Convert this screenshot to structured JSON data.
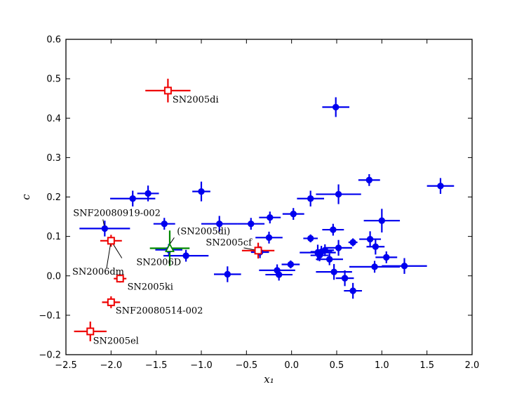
{
  "chart_data": {
    "type": "scatter",
    "xlabel": "x₁",
    "ylabel": "c",
    "xlim": [
      -2.5,
      2.0
    ],
    "ylim": [
      -0.2,
      0.6
    ],
    "xticks": [
      -2.5,
      -2.0,
      -1.5,
      -1.0,
      -0.5,
      0.0,
      0.5,
      1.0,
      1.5,
      2.0
    ],
    "xtick_labels": [
      "−2.5",
      "−2.0",
      "−1.5",
      "−1.0",
      "−0.5",
      "0.0",
      "0.5",
      "1.0",
      "1.5",
      "2.0"
    ],
    "yticks": [
      -0.2,
      -0.1,
      0.0,
      0.1,
      0.2,
      0.3,
      0.4,
      0.5,
      0.6
    ],
    "ytick_labels": [
      "−0.2",
      "−0.1",
      "0.0",
      "0.1",
      "0.2",
      "0.3",
      "0.4",
      "0.5",
      "0.6"
    ],
    "grid": false,
    "series": [
      {
        "color": "#0000ee",
        "marker": "filled-circle",
        "points": [
          {
            "x": 0.49,
            "y": 0.428,
            "xerr": 0.15,
            "yerr": 0.025
          },
          {
            "x": -1.59,
            "y": 0.209,
            "xerr": 0.12,
            "yerr": 0.02
          },
          {
            "x": -1.76,
            "y": 0.196,
            "xerr": 0.25,
            "yerr": 0.02
          },
          {
            "x": -1.0,
            "y": 0.214,
            "xerr": 0.1,
            "yerr": 0.025
          },
          {
            "x": -2.07,
            "y": 0.12,
            "xerr": 0.28,
            "yerr": 0.02
          },
          {
            "x": -1.41,
            "y": 0.132,
            "xerr": 0.12,
            "yerr": 0.015
          },
          {
            "x": -0.8,
            "y": 0.132,
            "xerr": 0.2,
            "yerr": 0.02
          },
          {
            "x": -0.45,
            "y": 0.132,
            "xerr": 0.15,
            "yerr": 0.015
          },
          {
            "x": -0.24,
            "y": 0.148,
            "xerr": 0.12,
            "yerr": 0.015
          },
          {
            "x": 0.02,
            "y": 0.157,
            "xerr": 0.12,
            "yerr": 0.015
          },
          {
            "x": 0.21,
            "y": 0.196,
            "xerr": 0.15,
            "yerr": 0.02
          },
          {
            "x": 0.52,
            "y": 0.207,
            "xerr": 0.25,
            "yerr": 0.025
          },
          {
            "x": 0.86,
            "y": 0.243,
            "xerr": 0.12,
            "yerr": 0.015
          },
          {
            "x": 1.65,
            "y": 0.228,
            "xerr": 0.15,
            "yerr": 0.02
          },
          {
            "x": 1.0,
            "y": 0.14,
            "xerr": 0.2,
            "yerr": 0.03
          },
          {
            "x": 0.46,
            "y": 0.117,
            "xerr": 0.12,
            "yerr": 0.015
          },
          {
            "x": 0.21,
            "y": 0.095,
            "xerr": 0.08,
            "yerr": 0.01
          },
          {
            "x": -0.25,
            "y": 0.097,
            "xerr": 0.15,
            "yerr": 0.015
          },
          {
            "x": 0.87,
            "y": 0.093,
            "xerr": 0.12,
            "yerr": 0.02
          },
          {
            "x": 0.68,
            "y": 0.085,
            "xerr": 0.05,
            "yerr": 0.01
          },
          {
            "x": 0.93,
            "y": 0.074,
            "xerr": 0.1,
            "yerr": 0.02
          },
          {
            "x": 0.52,
            "y": 0.071,
            "xerr": 0.15,
            "yerr": 0.02
          },
          {
            "x": 0.37,
            "y": 0.065,
            "xerr": 0.1,
            "yerr": 0.015
          },
          {
            "x": 0.33,
            "y": 0.061,
            "xerr": 0.12,
            "yerr": 0.015
          },
          {
            "x": 0.29,
            "y": 0.059,
            "xerr": 0.2,
            "yerr": 0.02
          },
          {
            "x": 0.31,
            "y": 0.052,
            "xerr": 0.1,
            "yerr": 0.015
          },
          {
            "x": 0.42,
            "y": 0.042,
            "xerr": 0.15,
            "yerr": 0.015
          },
          {
            "x": 1.05,
            "y": 0.047,
            "xerr": 0.12,
            "yerr": 0.015
          },
          {
            "x": -1.17,
            "y": 0.051,
            "xerr": 0.25,
            "yerr": 0.015
          },
          {
            "x": -0.35,
            "y": 0.06,
            "xerr": 0.1,
            "yerr": 0.015
          },
          {
            "x": -0.01,
            "y": 0.029,
            "xerr": 0.1,
            "yerr": 0.01
          },
          {
            "x": -0.16,
            "y": 0.014,
            "xerr": 0.2,
            "yerr": 0.015
          },
          {
            "x": -0.14,
            "y": 0.003,
            "xerr": 0.15,
            "yerr": 0.015
          },
          {
            "x": -0.71,
            "y": 0.004,
            "xerr": 0.15,
            "yerr": 0.02
          },
          {
            "x": 0.92,
            "y": 0.023,
            "xerr": 0.28,
            "yerr": 0.015
          },
          {
            "x": 1.25,
            "y": 0.025,
            "xerr": 0.25,
            "yerr": 0.02
          },
          {
            "x": 0.47,
            "y": 0.01,
            "xerr": 0.2,
            "yerr": 0.02
          },
          {
            "x": 0.59,
            "y": -0.006,
            "xerr": 0.1,
            "yerr": 0.02
          },
          {
            "x": 0.68,
            "y": -0.038,
            "xerr": 0.1,
            "yerr": 0.02
          },
          {
            "x": -1.36,
            "y": 0.066,
            "xerr": 0.15,
            "yerr": 0.015
          }
        ]
      },
      {
        "color": "#ee0000",
        "marker": "open-square",
        "points": [
          {
            "x": -1.37,
            "y": 0.47,
            "xerr": 0.25,
            "yerr": 0.03,
            "label": "SN2005di"
          },
          {
            "x": -2.0,
            "y": 0.089,
            "xerr": 0.12,
            "yerr": 0.015,
            "label": "SN2006D"
          },
          {
            "x": -0.37,
            "y": 0.064,
            "xerr": 0.18,
            "yerr": 0.02,
            "label": "SN2005cf"
          },
          {
            "x": -1.9,
            "y": -0.007,
            "xerr": 0.07,
            "yerr": 0.01,
            "label": "SN2005ki"
          },
          {
            "x": -2.0,
            "y": -0.067,
            "xerr": 0.1,
            "yerr": 0.015,
            "label": "SNF20080514-002"
          },
          {
            "x": -2.23,
            "y": -0.141,
            "xerr": 0.18,
            "yerr": 0.025,
            "label": "SN2005el"
          }
        ]
      },
      {
        "color": "#008800",
        "marker": "open-triangle",
        "points": [
          {
            "x": -1.35,
            "y": 0.07,
            "xerr": 0.22,
            "yerr": 0.045,
            "label": "(SN2005di)"
          }
        ]
      }
    ],
    "annotations": [
      {
        "text": "SN2005di",
        "x": -1.32,
        "y": 0.44
      },
      {
        "text": "SNF20080919-002",
        "x": -2.42,
        "y": 0.152
      },
      {
        "text": "(SN2005di)",
        "x": -1.27,
        "y": 0.106
      },
      {
        "text": "SN2005cf",
        "x": -0.95,
        "y": 0.077
      },
      {
        "text": "SN2006D",
        "x": -1.72,
        "y": 0.027
      },
      {
        "text": "SN2006dm",
        "x": -2.43,
        "y": 0.003
      },
      {
        "text": "SN2005ki",
        "x": -1.82,
        "y": -0.035
      },
      {
        "text": "SNF20080514-002",
        "x": -1.95,
        "y": -0.096
      },
      {
        "text": "SN2005el",
        "x": -2.2,
        "y": -0.172
      }
    ],
    "leader_lines": [
      {
        "x1": -2.07,
        "y1": 0.12,
        "x2": -2.09,
        "y2": 0.143
      },
      {
        "x1": -1.38,
        "y1": 0.07,
        "x2": -1.3,
        "y2": 0.097
      },
      {
        "x1": -0.37,
        "y1": 0.064,
        "x2": -0.53,
        "y2": 0.071
      },
      {
        "x1": -2.0,
        "y1": 0.089,
        "x2": -1.88,
        "y2": 0.045
      },
      {
        "x1": -2.0,
        "y1": 0.089,
        "x2": -2.05,
        "y2": 0.019
      }
    ]
  }
}
